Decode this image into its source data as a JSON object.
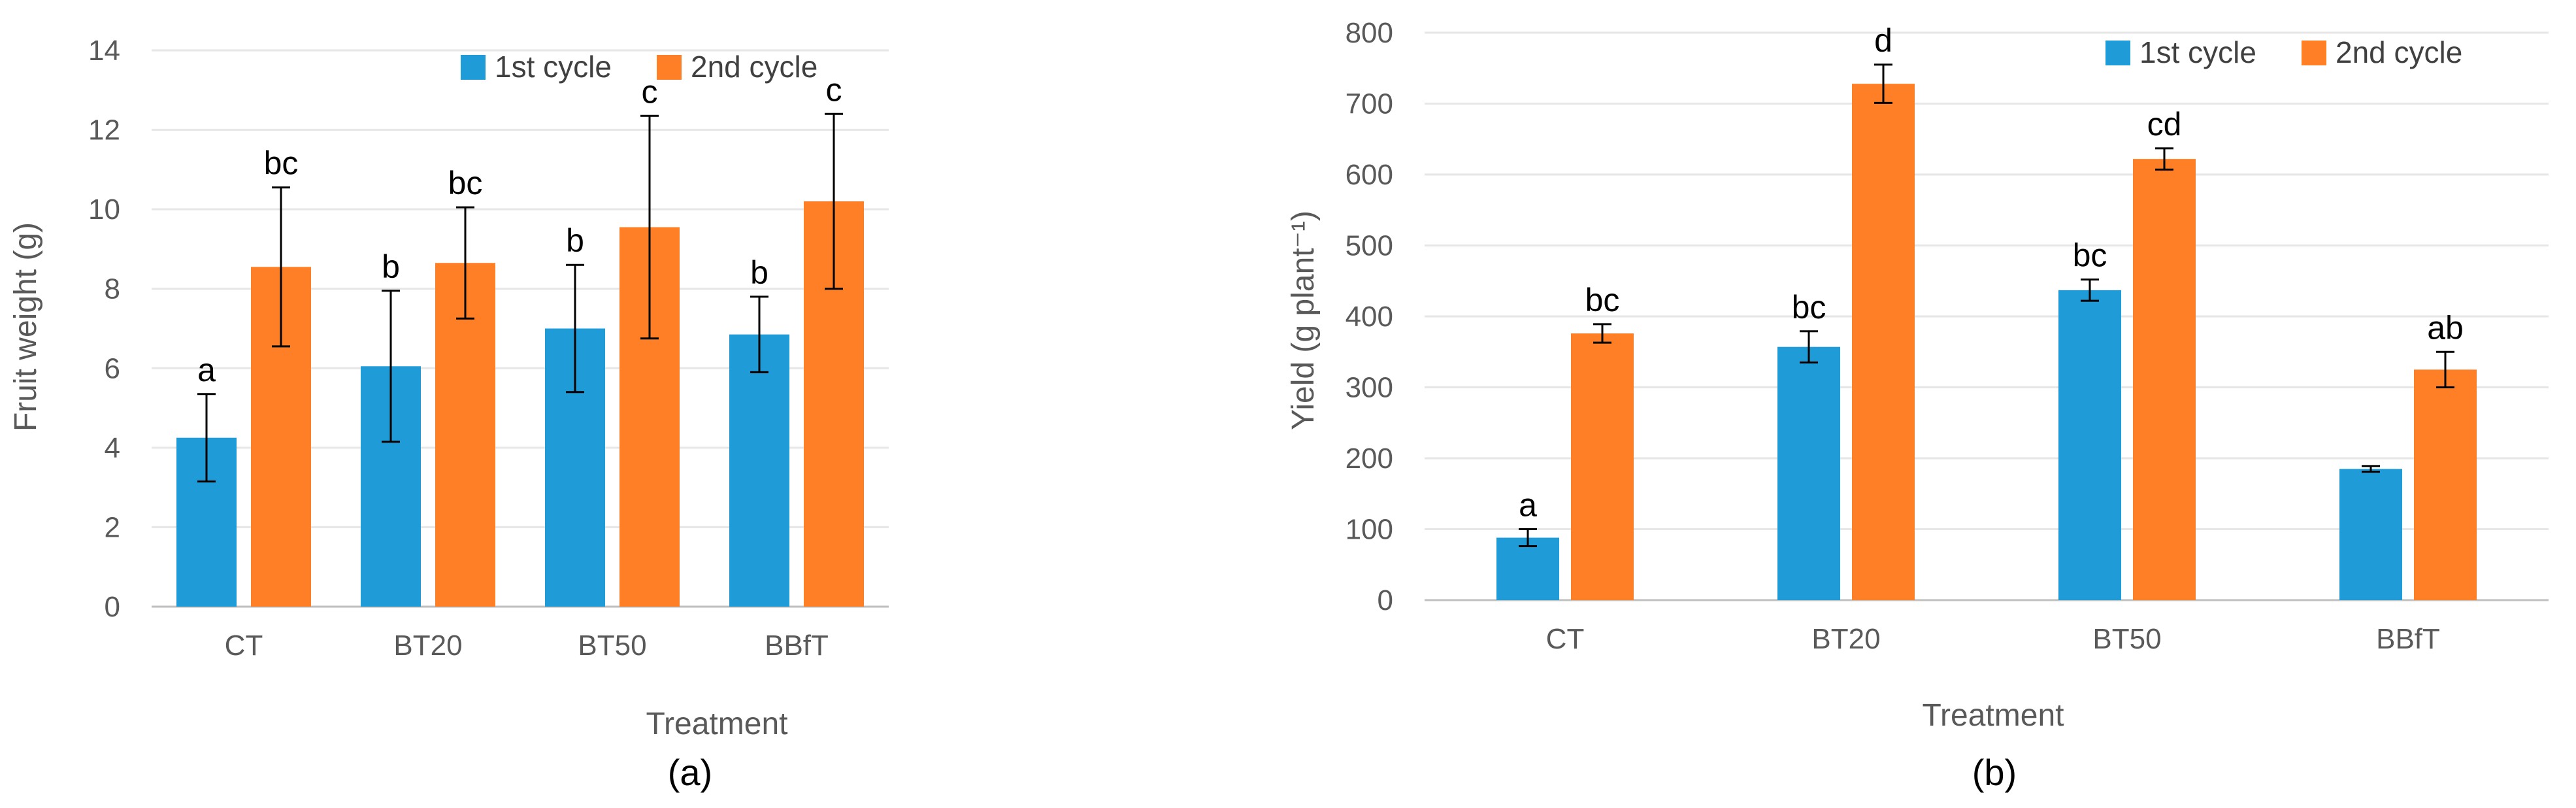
{
  "chart_data": [
    {
      "type": "bar",
      "panel_label": "(a)",
      "categories": [
        "CT",
        "BT20",
        "BT50",
        "BBfT"
      ],
      "series": [
        {
          "name": "1st cycle",
          "color": "#1f9bd7",
          "values": [
            4.25,
            6.05,
            7.0,
            6.85
          ],
          "errors": [
            1.1,
            1.9,
            1.6,
            0.95
          ],
          "labels": [
            "a",
            "b",
            "b",
            "b"
          ]
        },
        {
          "name": "2nd cycle",
          "color": "#ff7f27",
          "values": [
            8.55,
            8.65,
            9.55,
            10.2
          ],
          "errors": [
            2.0,
            1.4,
            2.8,
            2.2
          ],
          "labels": [
            "bc",
            "bc",
            "c",
            "c"
          ]
        }
      ],
      "xlabel": "Treatment",
      "ylabel": "Fruit weight (g)",
      "ylim": [
        0,
        14
      ],
      "yticks": [
        0,
        2,
        4,
        6,
        8,
        10,
        12,
        14
      ],
      "legend_position": "top-center",
      "grid": true
    },
    {
      "type": "bar",
      "panel_label": "(b)",
      "categories": [
        "CT",
        "BT20",
        "BT50",
        "BBfT"
      ],
      "series": [
        {
          "name": "1st cycle",
          "color": "#1f9bd7",
          "values": [
            88,
            357,
            437,
            185
          ],
          "errors": [
            12,
            22,
            15,
            4
          ],
          "labels": [
            "a",
            "bc",
            "bc",
            ""
          ]
        },
        {
          "name": "2nd cycle",
          "color": "#ff7f27",
          "values": [
            376,
            728,
            622,
            325
          ],
          "errors": [
            13,
            27,
            15,
            25
          ],
          "labels": [
            "bc",
            "d",
            "cd",
            "ab"
          ]
        }
      ],
      "xlabel": "Treatment",
      "ylabel": "Yield (g plant⁻¹)",
      "ylim": [
        0,
        800
      ],
      "yticks": [
        0,
        100,
        200,
        300,
        400,
        500,
        600,
        700,
        800
      ],
      "legend_position": "top-right",
      "grid": true
    }
  ]
}
